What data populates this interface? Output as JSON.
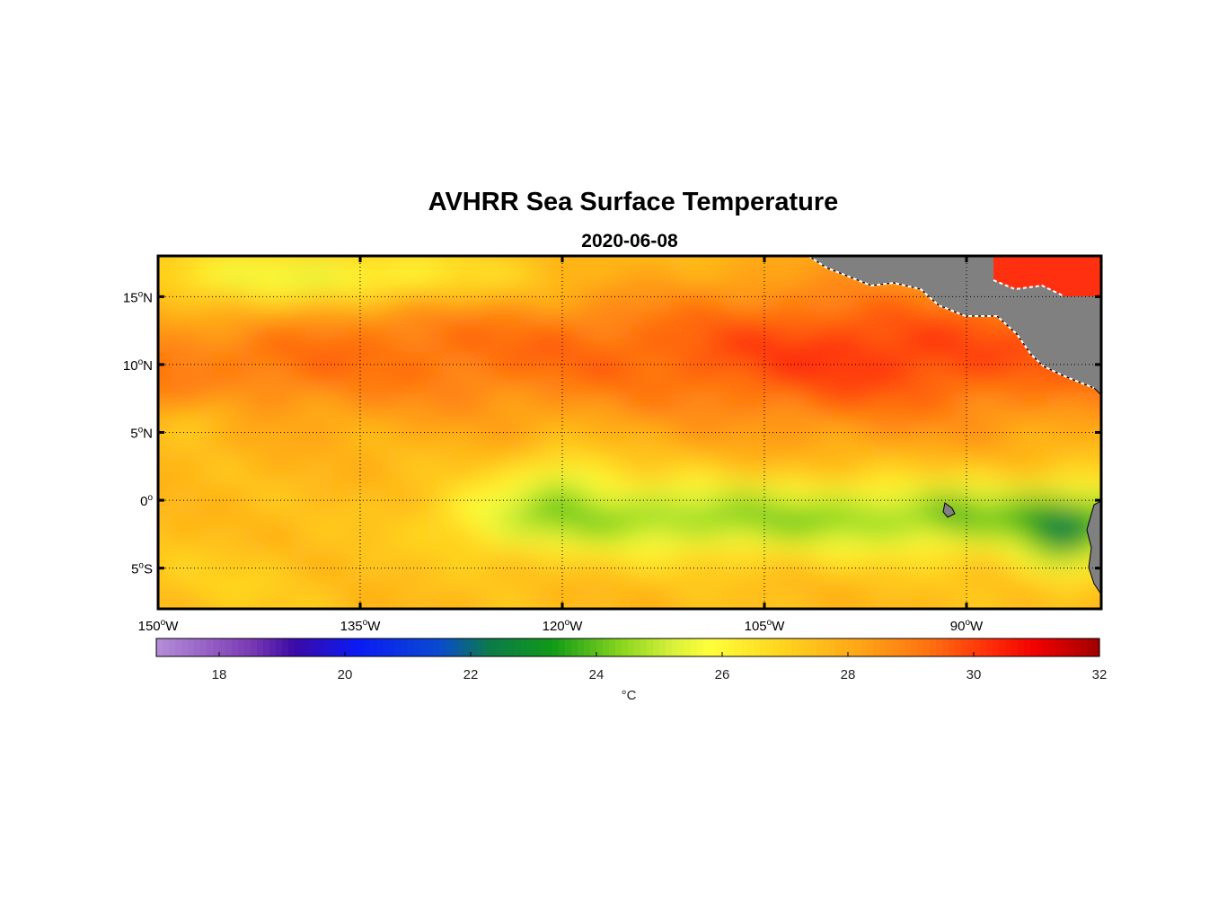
{
  "chart_data": {
    "type": "heatmap",
    "title": "AVHRR Sea Surface Temperature",
    "subtitle": "2020-06-08",
    "lon_range": [
      -150,
      -80
    ],
    "lat_range": [
      -8,
      18
    ],
    "x_ticks": [
      {
        "value": -150,
        "num": "150",
        "deg": "o",
        "hemi": "W"
      },
      {
        "value": -135,
        "num": "135",
        "deg": "o",
        "hemi": "W"
      },
      {
        "value": -120,
        "num": "120",
        "deg": "o",
        "hemi": "W"
      },
      {
        "value": -105,
        "num": "105",
        "deg": "o",
        "hemi": "W"
      },
      {
        "value": -90,
        "num": "90",
        "deg": "o",
        "hemi": "W"
      }
    ],
    "y_ticks": [
      {
        "value": 15,
        "num": "15",
        "deg": "o",
        "hemi": "N"
      },
      {
        "value": 10,
        "num": "10",
        "deg": "o",
        "hemi": "N"
      },
      {
        "value": 5,
        "num": "5",
        "deg": "o",
        "hemi": "N"
      },
      {
        "value": 0,
        "num": "0",
        "deg": "o",
        "hemi": ""
      },
      {
        "value": -5,
        "num": "5",
        "deg": "o",
        "hemi": "S"
      }
    ],
    "grid": true,
    "colorbar": {
      "range": [
        17,
        32
      ],
      "ticks": [
        "18",
        "20",
        "22",
        "24",
        "26",
        "28",
        "30",
        "32"
      ],
      "tick_values": [
        18,
        20,
        22,
        24,
        26,
        28,
        30,
        32
      ],
      "unit": "°C",
      "stops": [
        {
          "v": 17,
          "c": "#b58ed8"
        },
        {
          "v": 18.5,
          "c": "#7a3ab4"
        },
        {
          "v": 19.2,
          "c": "#3c0aa6"
        },
        {
          "v": 20.2,
          "c": "#0a1af5"
        },
        {
          "v": 21.5,
          "c": "#0a4ad0"
        },
        {
          "v": 22.3,
          "c": "#0c7a4a"
        },
        {
          "v": 23.3,
          "c": "#109a18"
        },
        {
          "v": 24.4,
          "c": "#8ad61e"
        },
        {
          "v": 25.2,
          "c": "#d8f03a"
        },
        {
          "v": 25.8,
          "c": "#ffff3a"
        },
        {
          "v": 27.0,
          "c": "#ffd21e"
        },
        {
          "v": 28.2,
          "c": "#ffa516"
        },
        {
          "v": 29.3,
          "c": "#ff7010"
        },
        {
          "v": 30.3,
          "c": "#ff2a08"
        },
        {
          "v": 31.0,
          "c": "#f00000"
        },
        {
          "v": 32,
          "c": "#a00000"
        }
      ]
    },
    "land_color": "#808080"
  }
}
